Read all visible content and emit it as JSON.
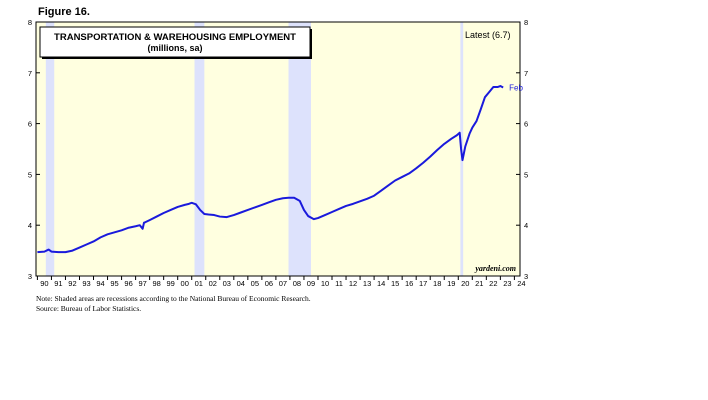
{
  "figure_label": "Figure 16.",
  "chart_data": {
    "type": "line",
    "title": "TRANSPORTATION & WAREHOUSING EMPLOYMENT",
    "subtitle": "(millions, sa)",
    "latest_label": "Latest (6.7)",
    "end_label": "Feb",
    "watermark": "yardeni.com",
    "xlabel": "",
    "ylabel": "",
    "xlim": [
      1989.9,
      2024.4
    ],
    "ylim": [
      3,
      8
    ],
    "y_ticks": [
      "3",
      "4",
      "5",
      "6",
      "7",
      "8"
    ],
    "x_ticks": [
      "90",
      "91",
      "92",
      "93",
      "94",
      "95",
      "96",
      "97",
      "98",
      "99",
      "00",
      "01",
      "02",
      "03",
      "04",
      "05",
      "06",
      "07",
      "08",
      "09",
      "10",
      "11",
      "12",
      "13",
      "14",
      "15",
      "16",
      "17",
      "18",
      "19",
      "20",
      "21",
      "22",
      "23",
      "24"
    ],
    "recessions": [
      [
        1990.6,
        1991.2
      ],
      [
        2001.2,
        2001.9
      ],
      [
        2007.9,
        2009.5
      ],
      [
        2020.15,
        2020.35
      ]
    ],
    "plot_background": "#ffffe0",
    "recession_color": "#dde2fc",
    "line_color": "#1a1adc",
    "series": [
      {
        "x": [
          1990.0,
          1990.5,
          1990.8,
          1991.0,
          1991.5,
          1992.0,
          1992.5,
          1993.0,
          1993.5,
          1994.0,
          1994.5,
          1995.0,
          1995.5,
          1996.0,
          1996.5,
          1997.0,
          1997.3,
          1997.5,
          1997.6,
          1997.7,
          1998.0,
          1998.5,
          1999.0,
          1999.5,
          2000.0,
          2000.5,
          2000.8,
          2001.0,
          2001.3,
          2001.6,
          2001.9,
          2002.2,
          2002.6,
          2003.0,
          2003.5,
          2004.0,
          2004.5,
          2005.0,
          2005.5,
          2006.0,
          2006.5,
          2007.0,
          2007.5,
          2007.9,
          2008.3,
          2008.7,
          2009.0,
          2009.3,
          2009.7,
          2010.0,
          2010.5,
          2011.0,
          2011.5,
          2012.0,
          2012.5,
          2013.0,
          2013.5,
          2014.0,
          2014.5,
          2015.0,
          2015.5,
          2016.0,
          2016.5,
          2017.0,
          2017.5,
          2018.0,
          2018.5,
          2019.0,
          2019.5,
          2019.9,
          2020.1,
          2020.2,
          2020.3,
          2020.5,
          2020.8,
          2021.0,
          2021.3,
          2021.6,
          2021.9,
          2022.2,
          2022.5,
          2022.8,
          2023.0,
          2023.2
        ],
        "values": [
          3.47,
          3.48,
          3.52,
          3.48,
          3.47,
          3.47,
          3.5,
          3.56,
          3.62,
          3.68,
          3.76,
          3.82,
          3.86,
          3.9,
          3.95,
          3.98,
          4.0,
          3.93,
          4.05,
          4.06,
          4.1,
          4.17,
          4.24,
          4.3,
          4.36,
          4.4,
          4.42,
          4.44,
          4.41,
          4.3,
          4.22,
          4.21,
          4.2,
          4.17,
          4.16,
          4.2,
          4.25,
          4.3,
          4.35,
          4.4,
          4.45,
          4.5,
          4.53,
          4.54,
          4.54,
          4.48,
          4.3,
          4.18,
          4.12,
          4.14,
          4.2,
          4.26,
          4.32,
          4.38,
          4.42,
          4.47,
          4.52,
          4.58,
          4.68,
          4.78,
          4.88,
          4.95,
          5.02,
          5.12,
          5.23,
          5.35,
          5.48,
          5.6,
          5.7,
          5.77,
          5.82,
          5.5,
          5.28,
          5.55,
          5.8,
          5.92,
          6.05,
          6.28,
          6.52,
          6.62,
          6.72,
          6.72,
          6.74,
          6.71
        ]
      }
    ]
  },
  "notes": [
    "Note: Shaded areas are recessions according to the National Bureau of Economic Research.",
    "Source: Bureau of Labor Statistics."
  ]
}
